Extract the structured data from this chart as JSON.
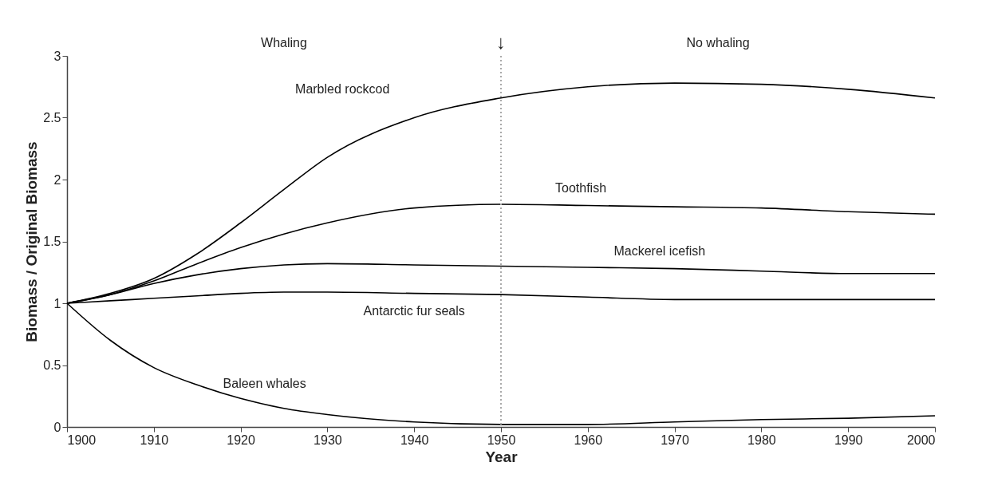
{
  "chart_data": {
    "type": "line",
    "xlabel": "Year",
    "ylabel": "Biomass / Original Biomass",
    "x": [
      1900,
      1905,
      1910,
      1915,
      1920,
      1925,
      1930,
      1940,
      1950,
      1960,
      1970,
      1980,
      1990,
      2000
    ],
    "series": [
      {
        "name": "Marbled rockcod",
        "color": "#000000",
        "values": [
          1,
          1.08,
          1.2,
          1.4,
          1.65,
          1.92,
          2.18,
          2.5,
          2.66,
          2.75,
          2.78,
          2.77,
          2.73,
          2.66
        ]
      },
      {
        "name": "Toothfish",
        "color": "#000000",
        "values": [
          1,
          1.07,
          1.18,
          1.32,
          1.45,
          1.56,
          1.65,
          1.77,
          1.8,
          1.79,
          1.78,
          1.77,
          1.74,
          1.72
        ]
      },
      {
        "name": "Mackerel icefish",
        "color": "#000000",
        "values": [
          1,
          1.07,
          1.16,
          1.23,
          1.28,
          1.31,
          1.32,
          1.31,
          1.3,
          1.29,
          1.28,
          1.26,
          1.24,
          1.24
        ]
      },
      {
        "name": "Antarctic fur seals",
        "color": "#000000",
        "values": [
          1,
          1.02,
          1.04,
          1.06,
          1.08,
          1.09,
          1.09,
          1.08,
          1.07,
          1.05,
          1.03,
          1.03,
          1.03,
          1.03
        ]
      },
      {
        "name": "Baleen whales",
        "color": "#000000",
        "values": [
          1,
          0.7,
          0.48,
          0.34,
          0.23,
          0.15,
          0.1,
          0.04,
          0.02,
          0.02,
          0.04,
          0.06,
          0.07,
          0.09
        ]
      }
    ],
    "xlim": [
      1900,
      2000
    ],
    "xticks": [
      1900,
      1910,
      1920,
      1930,
      1940,
      1950,
      1960,
      1970,
      1980,
      1990,
      2000
    ],
    "ylim": [
      0,
      3
    ],
    "yticks": [
      0,
      0.5,
      1,
      1.5,
      2,
      2.5,
      3
    ],
    "ref_lines": [
      {
        "axis": "x",
        "value": 1950,
        "label": "↓",
        "color": "#aaaaaa",
        "line_style": "dotted"
      }
    ],
    "annotations": [
      "Whaling",
      "No whaling"
    ],
    "legend": false,
    "grid": false
  }
}
